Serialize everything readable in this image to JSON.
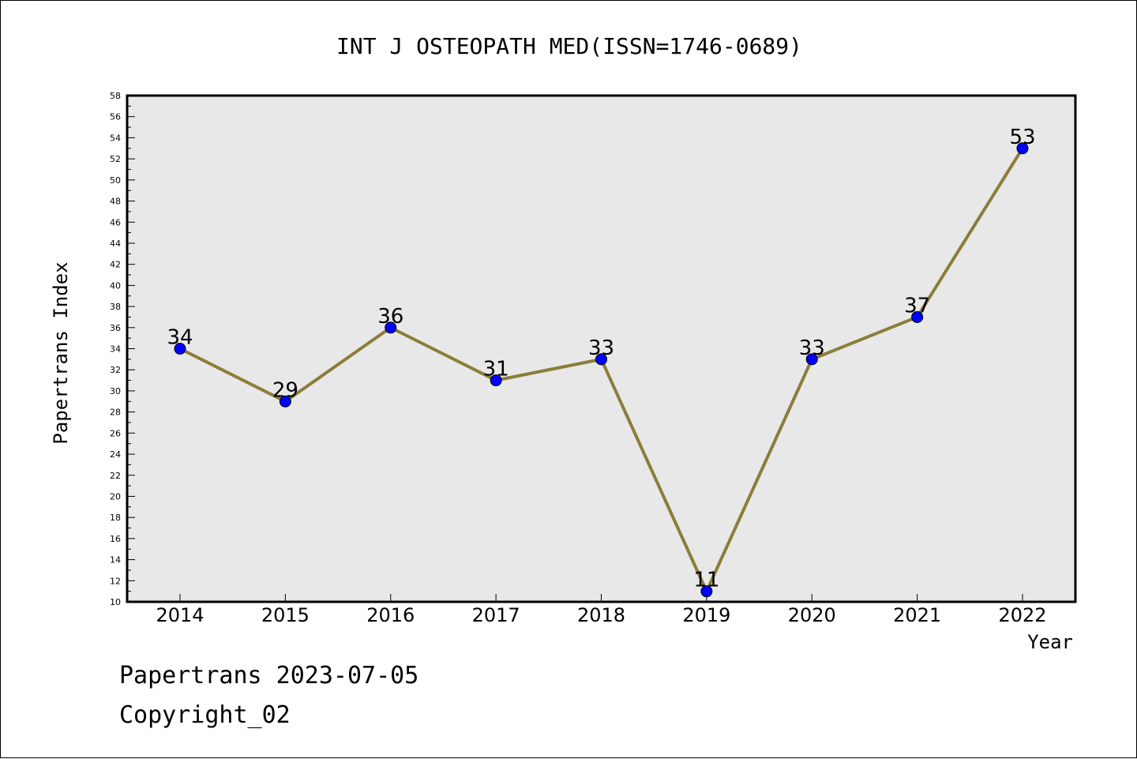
{
  "chart_data": {
    "type": "line",
    "title": "INT J OSTEOPATH MED(ISSN=1746-0689)",
    "xlabel": "Year",
    "ylabel": "Papertrans Index",
    "categories": [
      "2014",
      "2015",
      "2016",
      "2017",
      "2018",
      "2019",
      "2020",
      "2021",
      "2022"
    ],
    "values": [
      34,
      29,
      36,
      31,
      33,
      11,
      33,
      37,
      53
    ],
    "ylim": [
      10,
      58
    ],
    "yticks": [
      10,
      12,
      14,
      16,
      18,
      20,
      22,
      24,
      26,
      28,
      30,
      32,
      34,
      36,
      38,
      40,
      42,
      44,
      46,
      48,
      50,
      52,
      54,
      56,
      58
    ],
    "grid": false,
    "line_color": "#8b7d3a",
    "marker_color": "#0000ff",
    "plot_background": "#e8e8e8"
  },
  "footer": {
    "line1": "Papertrans 2023-07-05",
    "line2": "Copyright_02"
  }
}
